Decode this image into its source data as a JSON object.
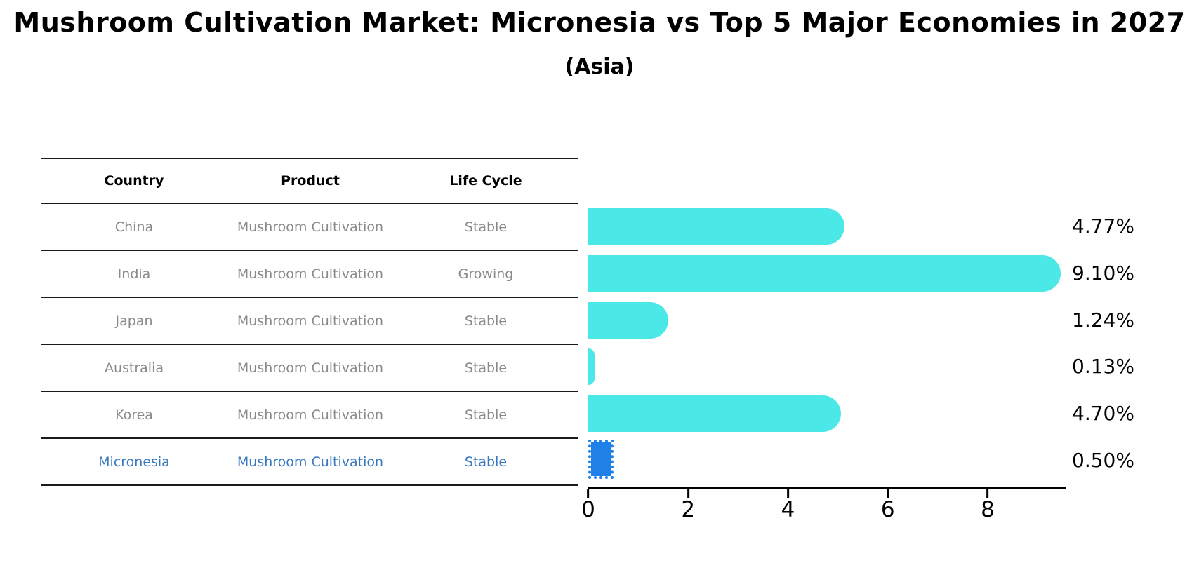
{
  "title": "Mushroom Cultivation Market: Micronesia vs Top 5 Major Economies in 2027",
  "subtitle": "(Asia)",
  "table": {
    "headers": [
      "Country",
      "Product",
      "Life Cycle"
    ],
    "rows": [
      {
        "country": "China",
        "product": "Mushroom Cultivation",
        "life_cycle": "Stable"
      },
      {
        "country": "India",
        "product": "Mushroom Cultivation",
        "life_cycle": "Growing"
      },
      {
        "country": "Japan",
        "product": "Mushroom Cultivation",
        "life_cycle": "Stable"
      },
      {
        "country": "Australia",
        "product": "Mushroom Cultivation",
        "life_cycle": "Stable"
      },
      {
        "country": "Korea",
        "product": "Mushroom Cultivation",
        "life_cycle": "Stable"
      },
      {
        "country": "Micronesia",
        "product": "Mushroom Cultivation",
        "life_cycle": "Stable"
      }
    ],
    "highlight_row": "Micronesia"
  },
  "chart_data": {
    "type": "bar",
    "orientation": "horizontal",
    "title": "Mushroom Cultivation Market: Micronesia vs Top 5 Major Economies in 2027",
    "subtitle": "(Asia)",
    "categories": [
      "China",
      "India",
      "Japan",
      "Australia",
      "Korea",
      "Micronesia"
    ],
    "values": [
      4.77,
      9.1,
      1.24,
      0.13,
      4.7,
      0.5
    ],
    "value_labels": [
      "4.77%",
      "9.10%",
      "1.24%",
      "0.13%",
      "4.70%",
      "0.50%"
    ],
    "x_ticks": [
      0,
      2,
      4,
      6,
      8
    ],
    "xlim": [
      0,
      9.56
    ],
    "grid": false,
    "legend": false,
    "highlight_category": "Micronesia",
    "colors": {
      "bar": "#4BE8E8",
      "highlight_bar": "#1F80E8",
      "highlight_text": "#3878C0",
      "table_text": "#8A8A8A",
      "header_text": "#000000",
      "axis": "#000000"
    }
  }
}
